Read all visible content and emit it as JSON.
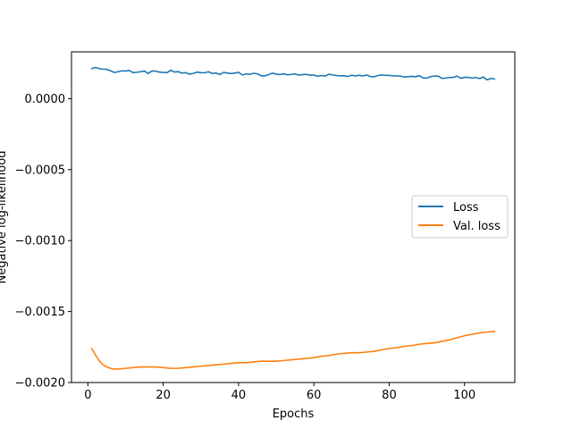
{
  "chart_data": {
    "type": "line",
    "xlabel": "Epochs",
    "ylabel": "Negative log-likelihood",
    "xlim": [
      -4.35,
      113.35
    ],
    "ylim": [
      -0.002,
      0.00033
    ],
    "xticks": [
      0,
      20,
      40,
      60,
      80,
      100
    ],
    "yticks": [
      0.0,
      -0.0005,
      -0.001,
      -0.0015,
      -0.002
    ],
    "xtick_labels": [
      "0",
      "20",
      "40",
      "60",
      "80",
      "100"
    ],
    "ytick_labels": [
      "0.0000",
      "−0.0005",
      "−0.0010",
      "−0.0015",
      "−0.0020"
    ],
    "grid": false,
    "legend_position": "center-right",
    "series": [
      {
        "name": "Loss",
        "color": "#1f77b4",
        "x": [
          1,
          2,
          3,
          4,
          5,
          6,
          7,
          8,
          9,
          10,
          11,
          12,
          13,
          14,
          15,
          16,
          17,
          18,
          19,
          20,
          21,
          22,
          23,
          24,
          25,
          26,
          27,
          28,
          29,
          30,
          31,
          32,
          33,
          34,
          35,
          36,
          37,
          38,
          39,
          40,
          41,
          42,
          43,
          44,
          45,
          46,
          47,
          48,
          49,
          50,
          51,
          52,
          53,
          54,
          55,
          56,
          57,
          58,
          59,
          60,
          61,
          62,
          63,
          64,
          65,
          66,
          67,
          68,
          69,
          70,
          71,
          72,
          73,
          74,
          75,
          76,
          77,
          78,
          79,
          80,
          81,
          82,
          83,
          84,
          85,
          86,
          87,
          88,
          89,
          90,
          91,
          92,
          93,
          94,
          95,
          96,
          97,
          98,
          99,
          100,
          101,
          102,
          103,
          104,
          105,
          106,
          107,
          108
        ],
        "values": [
          0.000212,
          0.00022,
          0.000212,
          0.000208,
          0.000207,
          0.000196,
          0.000185,
          0.00019,
          0.000196,
          0.000195,
          0.000199,
          0.000183,
          0.000186,
          0.00019,
          0.000195,
          0.000178,
          0.000195,
          0.000194,
          0.000187,
          0.000185,
          0.000183,
          0.0002,
          0.000188,
          0.00019,
          0.00018,
          0.000183,
          0.000173,
          0.000178,
          0.000187,
          0.000183,
          0.000182,
          0.00019,
          0.000178,
          0.000181,
          0.00017,
          0.000185,
          0.000181,
          0.000177,
          0.00018,
          0.000186,
          0.000167,
          0.000175,
          0.000172,
          0.000179,
          0.000175,
          0.000161,
          0.000161,
          0.00017,
          0.00018,
          0.000173,
          0.00017,
          0.000176,
          0.000168,
          0.000171,
          0.000174,
          0.000166,
          0.00017,
          0.000171,
          0.000166,
          0.000166,
          0.000158,
          0.000163,
          0.00016,
          0.000172,
          0.000167,
          0.000163,
          0.000161,
          0.000162,
          0.000156,
          0.000165,
          0.00016,
          0.000165,
          0.00016,
          0.000167,
          0.000156,
          0.000154,
          0.000163,
          0.000168,
          0.000164,
          0.000164,
          0.000161,
          0.00016,
          0.000159,
          0.000152,
          0.000155,
          0.000157,
          0.000154,
          0.000162,
          0.000146,
          0.000145,
          0.000155,
          0.00016,
          0.000159,
          0.000143,
          0.000145,
          0.000149,
          0.00015,
          0.000159,
          0.000144,
          0.00015,
          0.00015,
          0.000145,
          0.000149,
          0.000142,
          0.000153,
          0.000132,
          0.000143,
          0.000138
        ]
      },
      {
        "name": "Val. loss",
        "color": "#ff7f0e",
        "x": [
          1,
          2,
          3,
          4,
          5,
          6,
          7,
          8,
          10,
          12,
          14,
          16,
          18,
          20,
          22,
          24,
          26,
          28,
          30,
          32,
          34,
          36,
          38,
          40,
          42,
          44,
          46,
          48,
          50,
          52,
          54,
          56,
          58,
          60,
          62,
          64,
          66,
          68,
          70,
          72,
          74,
          76,
          78,
          80,
          82,
          84,
          86,
          88,
          90,
          92,
          94,
          96,
          98,
          100,
          102,
          104,
          106,
          108
        ],
        "values": [
          -0.00176,
          -0.001805,
          -0.001845,
          -0.001875,
          -0.00189,
          -0.0019,
          -0.001905,
          -0.001905,
          -0.0019,
          -0.001895,
          -0.00189,
          -0.00189,
          -0.00189,
          -0.001895,
          -0.0019,
          -0.0019,
          -0.001895,
          -0.00189,
          -0.001885,
          -0.00188,
          -0.001875,
          -0.00187,
          -0.001865,
          -0.00186,
          -0.00186,
          -0.001855,
          -0.00185,
          -0.00185,
          -0.00185,
          -0.001845,
          -0.00184,
          -0.001835,
          -0.00183,
          -0.001825,
          -0.001815,
          -0.00181,
          -0.0018,
          -0.001795,
          -0.00179,
          -0.00179,
          -0.001785,
          -0.00178,
          -0.00177,
          -0.00176,
          -0.001755,
          -0.001745,
          -0.00174,
          -0.00173,
          -0.001725,
          -0.00172,
          -0.00171,
          -0.0017,
          -0.001685,
          -0.00167,
          -0.00166,
          -0.00165,
          -0.001645,
          -0.00164
        ]
      }
    ]
  }
}
